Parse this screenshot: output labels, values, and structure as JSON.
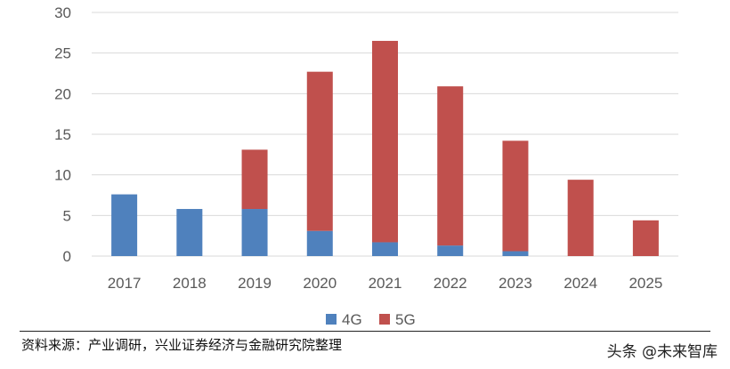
{
  "chart_data": {
    "type": "bar",
    "stacked": true,
    "categories": [
      "2017",
      "2018",
      "2019",
      "2020",
      "2021",
      "2022",
      "2023",
      "2024",
      "2025"
    ],
    "series": [
      {
        "name": "4G",
        "color": "#4f81bd",
        "values": [
          7.6,
          5.8,
          5.8,
          3.1,
          1.7,
          1.3,
          0.6,
          0,
          0
        ]
      },
      {
        "name": "5G",
        "color": "#c0504d",
        "values": [
          0,
          0,
          7.3,
          19.6,
          24.8,
          19.6,
          13.6,
          9.4,
          4.4
        ]
      }
    ],
    "yticks": [
      0,
      5,
      10,
      15,
      20,
      25,
      30
    ],
    "ylim": [
      0,
      30
    ],
    "grid": true,
    "legend_position": "bottom",
    "title": "",
    "xlabel": "",
    "ylabel": ""
  },
  "footer": {
    "source": "资料来源：产业调研，兴业证券经济与金融研究院整理",
    "watermark": "头条 @未来智库"
  }
}
